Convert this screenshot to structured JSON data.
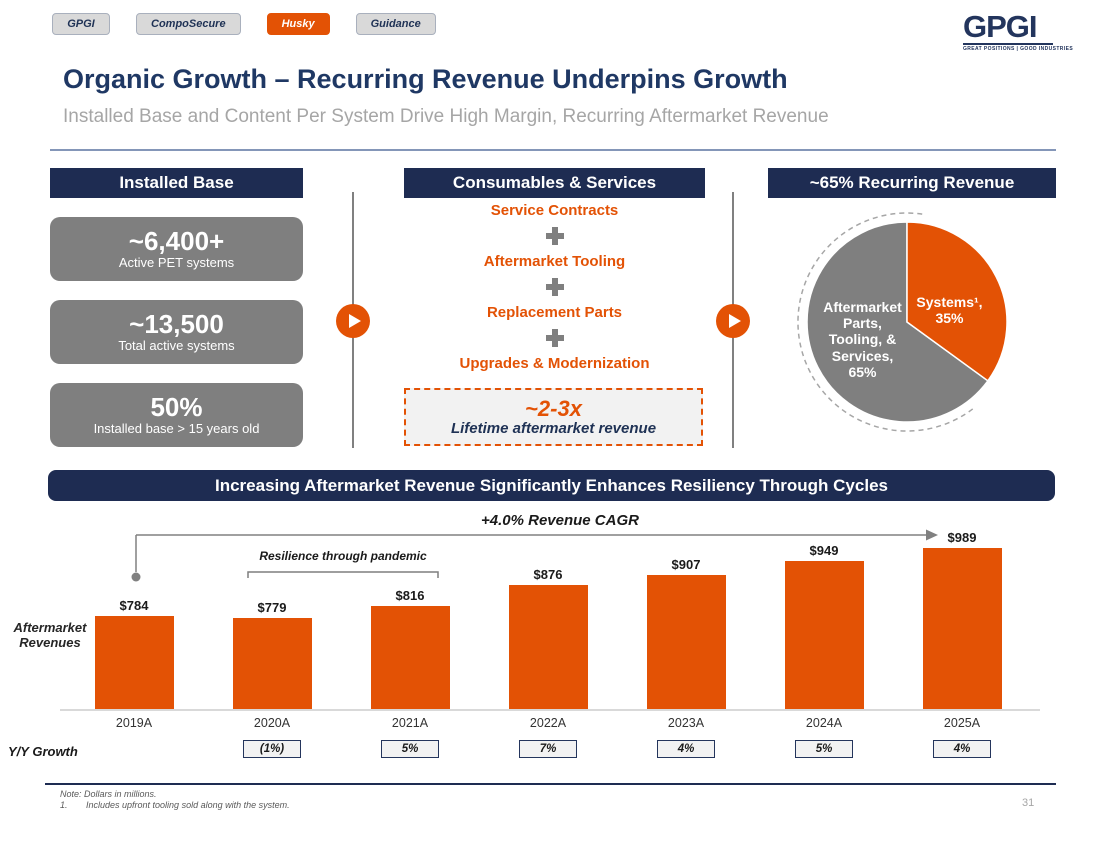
{
  "nav_tabs": {
    "items": [
      {
        "label": "GPGI",
        "active": false
      },
      {
        "label": "CompoSecure",
        "active": false
      },
      {
        "label": "Husky",
        "active": true
      },
      {
        "label": "Guidance",
        "active": false
      }
    ]
  },
  "logo": {
    "name": "GPGI",
    "tagline": "GREAT POSITIONS | GOOD INDUSTRIES"
  },
  "header": {
    "title": "Organic Growth – Recurring Revenue Underpins Growth",
    "subtitle": "Installed Base and Content Per System Drive High Margin, Recurring Aftermarket Revenue"
  },
  "panels": {
    "installed_base": {
      "header": "Installed Base",
      "stats": [
        {
          "value": "~6,400+",
          "caption": "Active PET systems"
        },
        {
          "value": "~13,500",
          "caption": "Total active systems"
        },
        {
          "value": "50%",
          "caption": "Installed base > 15 years old"
        }
      ]
    },
    "consumables": {
      "header": "Consumables & Services",
      "items": [
        "Service Contracts",
        "Aftermarket Tooling",
        "Replacement Parts",
        "Upgrades & Modernization"
      ],
      "plus_icon": "plus",
      "highlight": {
        "value": "~2-3x",
        "caption": "Lifetime aftermarket revenue"
      }
    },
    "recurring": {
      "header": "~65% Recurring Revenue"
    }
  },
  "banner": {
    "text": "Increasing Aftermarket Revenue Significantly Enhances Resiliency Through Cycles"
  },
  "chart_data": [
    {
      "type": "bar",
      "title": "+4.0% Revenue CAGR",
      "annotation": "Resilience through pandemic",
      "annotation_span": [
        "2020A",
        "2021A"
      ],
      "ylabel": "Aftermarket\nRevenues",
      "categories": [
        "2019A",
        "2020A",
        "2021A",
        "2022A",
        "2023A",
        "2024A",
        "2025A"
      ],
      "values": [
        784,
        779,
        816,
        876,
        907,
        949,
        989
      ],
      "labels": [
        "$784",
        "$779",
        "$816",
        "$876",
        "$907",
        "$949",
        "$989"
      ],
      "growth_label": "Y/Y Growth",
      "growth": [
        "",
        "(1%)",
        "5%",
        "7%",
        "4%",
        "5%",
        "4%"
      ],
      "bar_color": "#e35205",
      "ylim": [
        508,
        1050
      ],
      "grid": false,
      "legend": "none"
    },
    {
      "type": "pie",
      "title": "~65% Recurring Revenue",
      "slices": [
        {
          "name": "Systems",
          "display": "Systems¹,\n35%",
          "value": 35,
          "color": "#e35205"
        },
        {
          "name": "Aftermarket Parts, Tooling, & Services",
          "display": "Aftermarket\nParts,\nTooling, &\nServices,\n65%",
          "value": 65,
          "color": "#7f7f7f"
        }
      ]
    }
  ],
  "footnotes": {
    "note": "Note: Dollars in millions.",
    "items": [
      {
        "num": "1.",
        "text": "Includes upfront tooling sold along with the system."
      }
    ]
  },
  "page": {
    "number": "31"
  },
  "colors": {
    "accent_orange": "#e35205",
    "brand_navy": "#1e2c52",
    "stat_gray": "#7f7f7f",
    "subtitle_gray": "#a6a6a6"
  }
}
